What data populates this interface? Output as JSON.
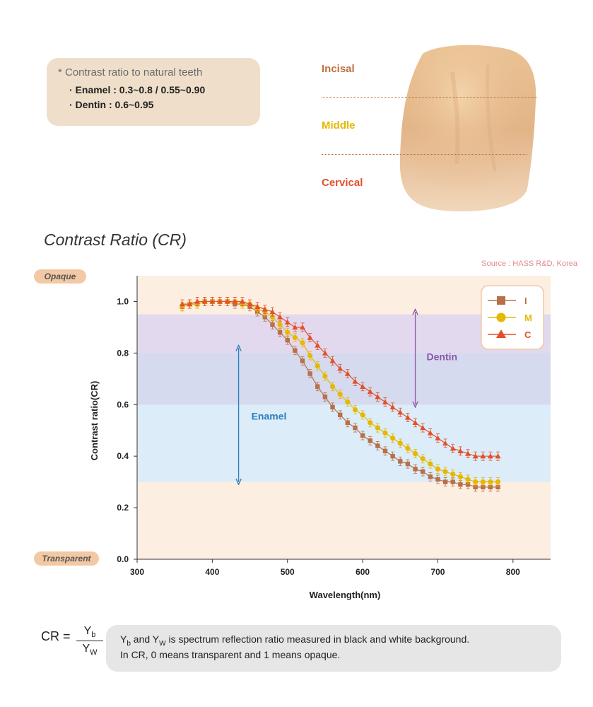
{
  "note": {
    "heading": "* Contrast ratio to natural teeth",
    "enamel": "· Enamel : 0.3~0.8 / 0.55~0.90",
    "dentin": "· Dentin : 0.6~0.95"
  },
  "zones": {
    "incisal": "Incisal",
    "middle": "Middle",
    "cervical": "Cervical"
  },
  "colors": {
    "incisal": "#b87048",
    "middle": "#e6b800",
    "cervical": "#e2502a",
    "enamel": "#2e7fbf",
    "dentin": "#8e57a8"
  },
  "title": "Contrast Ratio (CR)",
  "source": "Source : HASS R&D, Korea",
  "pills": {
    "opaque": "Opaque",
    "transparent": "Transparent"
  },
  "chart_data": {
    "type": "line",
    "title": "Contrast Ratio (CR)",
    "xlabel": "Wavelength(nm)",
    "ylabel": "Contrast ratio(CR)",
    "xlim": [
      300,
      850
    ],
    "ylim": [
      0,
      1.1
    ],
    "xticks": [
      "300",
      "400",
      "500",
      "600",
      "700",
      "800"
    ],
    "yticks": [
      "0.0",
      "0.2",
      "0.4",
      "0.6",
      "0.8",
      "1.0"
    ],
    "legend_position": "top-right",
    "bands": [
      {
        "name": "Enamel",
        "range": [
          0.3,
          0.8
        ],
        "color": "#dcecf8"
      },
      {
        "name": "Dentin",
        "range": [
          0.6,
          0.95
        ],
        "color": "#e2d9ee"
      }
    ],
    "annotations": [
      {
        "label": "Enamel",
        "x": 435,
        "from": 0.3,
        "to": 0.82
      },
      {
        "label": "Dentin",
        "x": 670,
        "from": 0.6,
        "to": 0.96
      }
    ],
    "x": [
      360,
      370,
      380,
      390,
      400,
      410,
      420,
      430,
      440,
      450,
      460,
      470,
      480,
      490,
      500,
      510,
      520,
      530,
      540,
      550,
      560,
      570,
      580,
      590,
      600,
      610,
      620,
      630,
      640,
      650,
      660,
      670,
      680,
      690,
      700,
      710,
      720,
      730,
      740,
      750,
      760,
      770,
      780
    ],
    "series": [
      {
        "name": "I",
        "marker": "square",
        "values": [
          0.98,
          0.99,
          0.99,
          1.0,
          1.0,
          1.0,
          1.0,
          0.99,
          0.99,
          0.98,
          0.96,
          0.94,
          0.91,
          0.88,
          0.85,
          0.81,
          0.77,
          0.72,
          0.67,
          0.63,
          0.59,
          0.56,
          0.53,
          0.51,
          0.48,
          0.46,
          0.44,
          0.42,
          0.4,
          0.38,
          0.37,
          0.35,
          0.34,
          0.32,
          0.31,
          0.3,
          0.3,
          0.29,
          0.29,
          0.28,
          0.28,
          0.28,
          0.28
        ]
      },
      {
        "name": "M",
        "marker": "circle",
        "values": [
          0.98,
          0.99,
          0.99,
          1.0,
          1.0,
          1.0,
          1.0,
          1.0,
          0.99,
          0.99,
          0.97,
          0.96,
          0.94,
          0.91,
          0.88,
          0.86,
          0.84,
          0.79,
          0.75,
          0.71,
          0.67,
          0.64,
          0.61,
          0.58,
          0.56,
          0.53,
          0.51,
          0.49,
          0.47,
          0.45,
          0.43,
          0.41,
          0.39,
          0.37,
          0.35,
          0.34,
          0.33,
          0.32,
          0.31,
          0.3,
          0.3,
          0.3,
          0.3
        ]
      },
      {
        "name": "C",
        "marker": "triangle",
        "values": [
          0.99,
          0.99,
          1.0,
          1.0,
          1.0,
          1.0,
          1.0,
          1.0,
          1.0,
          0.99,
          0.98,
          0.97,
          0.96,
          0.94,
          0.92,
          0.9,
          0.9,
          0.86,
          0.83,
          0.8,
          0.77,
          0.74,
          0.72,
          0.69,
          0.67,
          0.65,
          0.63,
          0.61,
          0.59,
          0.57,
          0.55,
          0.53,
          0.51,
          0.49,
          0.47,
          0.45,
          0.43,
          0.42,
          0.41,
          0.4,
          0.4,
          0.4,
          0.4
        ]
      }
    ]
  },
  "formula": {
    "lhs": "CR =",
    "num": "Y",
    "num_sub": "b",
    "den": "Y",
    "den_sub": "W"
  },
  "description": {
    "line1_a": "Y",
    "line1_sub1": "b",
    "line1_b": " and Y",
    "line1_sub2": "W",
    "line1_c": " is spectrum reflection ratio measured in black and white background.",
    "line2": "In CR, 0 means transparent and 1 means opaque."
  }
}
